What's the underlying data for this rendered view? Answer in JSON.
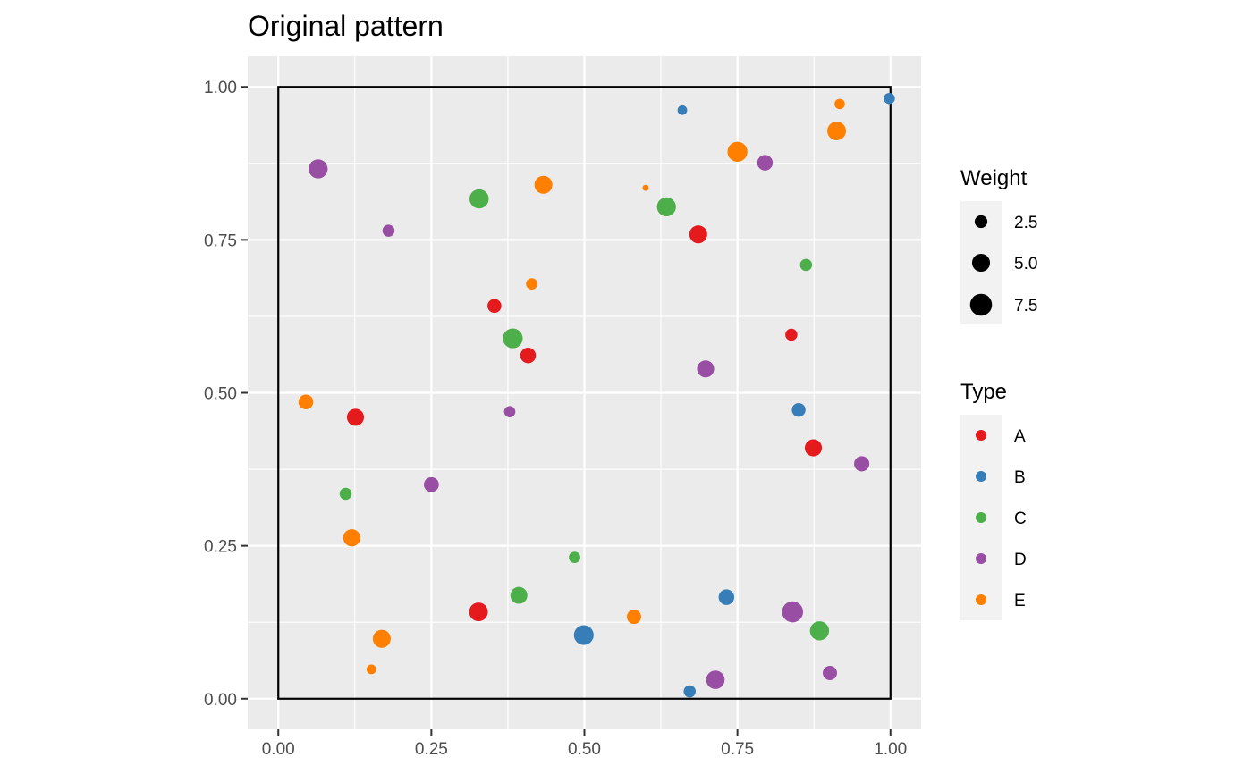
{
  "chart_data": {
    "type": "scatter",
    "title": "Original pattern",
    "xlim": [
      -0.05,
      1.05
    ],
    "ylim": [
      -0.05,
      1.05
    ],
    "x_ticks": [
      0.0,
      0.25,
      0.5,
      0.75,
      1.0
    ],
    "x_tick_labels": [
      "0.00",
      "0.25",
      "0.50",
      "0.75",
      "1.00"
    ],
    "y_ticks": [
      0.0,
      0.25,
      0.5,
      0.75,
      1.0
    ],
    "y_tick_labels": [
      "0.00",
      "0.25",
      "0.50",
      "0.75",
      "1.00"
    ],
    "window": {
      "x": [
        0,
        1
      ],
      "y": [
        0,
        1
      ]
    },
    "grid": true,
    "colors": {
      "A": "#e41a1c",
      "B": "#377eb8",
      "C": "#4daf4a",
      "D": "#984ea3",
      "E": "#ff7f00"
    },
    "size_legend": {
      "title": "Weight",
      "breaks": [
        2.5,
        5.0,
        7.5
      ],
      "labels": [
        "2.5",
        "5.0",
        "7.5"
      ]
    },
    "color_legend": {
      "title": "Type",
      "entries": [
        "A",
        "B",
        "C",
        "D",
        "E"
      ]
    },
    "points": [
      {
        "x": 0.065,
        "y": 0.866,
        "type": "D",
        "weight": 7.5
      },
      {
        "x": 0.18,
        "y": 0.765,
        "type": "D",
        "weight": 3.0
      },
      {
        "x": 0.328,
        "y": 0.817,
        "type": "C",
        "weight": 7.6
      },
      {
        "x": 0.433,
        "y": 0.84,
        "type": "E",
        "weight": 6.6
      },
      {
        "x": 0.6,
        "y": 0.835,
        "type": "E",
        "weight": 0.8
      },
      {
        "x": 0.634,
        "y": 0.804,
        "type": "C",
        "weight": 7.4
      },
      {
        "x": 0.66,
        "y": 0.962,
        "type": "B",
        "weight": 1.9
      },
      {
        "x": 0.686,
        "y": 0.759,
        "type": "A",
        "weight": 6.6
      },
      {
        "x": 0.75,
        "y": 0.894,
        "type": "E",
        "weight": 8.2
      },
      {
        "x": 0.795,
        "y": 0.876,
        "type": "D",
        "weight": 5.0
      },
      {
        "x": 0.912,
        "y": 0.928,
        "type": "E",
        "weight": 7.2
      },
      {
        "x": 0.917,
        "y": 0.972,
        "type": "E",
        "weight": 2.2
      },
      {
        "x": 0.998,
        "y": 0.981,
        "type": "B",
        "weight": 2.6
      },
      {
        "x": 0.414,
        "y": 0.678,
        "type": "E",
        "weight": 2.7
      },
      {
        "x": 0.353,
        "y": 0.642,
        "type": "A",
        "weight": 4.0
      },
      {
        "x": 0.862,
        "y": 0.709,
        "type": "C",
        "weight": 3.0
      },
      {
        "x": 0.383,
        "y": 0.589,
        "type": "C",
        "weight": 8.1
      },
      {
        "x": 0.408,
        "y": 0.561,
        "type": "A",
        "weight": 5.0
      },
      {
        "x": 0.838,
        "y": 0.595,
        "type": "A",
        "weight": 3.0
      },
      {
        "x": 0.698,
        "y": 0.539,
        "type": "D",
        "weight": 6.0
      },
      {
        "x": 0.045,
        "y": 0.485,
        "type": "E",
        "weight": 4.5
      },
      {
        "x": 0.126,
        "y": 0.46,
        "type": "A",
        "weight": 6.0
      },
      {
        "x": 0.378,
        "y": 0.469,
        "type": "D",
        "weight": 2.6
      },
      {
        "x": 0.85,
        "y": 0.472,
        "type": "B",
        "weight": 3.9
      },
      {
        "x": 0.874,
        "y": 0.41,
        "type": "A",
        "weight": 6.0
      },
      {
        "x": 0.953,
        "y": 0.384,
        "type": "D",
        "weight": 4.8
      },
      {
        "x": 0.11,
        "y": 0.335,
        "type": "C",
        "weight": 3.0
      },
      {
        "x": 0.25,
        "y": 0.35,
        "type": "D",
        "weight": 4.6
      },
      {
        "x": 0.12,
        "y": 0.263,
        "type": "E",
        "weight": 6.1
      },
      {
        "x": 0.484,
        "y": 0.231,
        "type": "C",
        "weight": 2.7
      },
      {
        "x": 0.327,
        "y": 0.142,
        "type": "A",
        "weight": 7.2
      },
      {
        "x": 0.393,
        "y": 0.169,
        "type": "C",
        "weight": 5.9
      },
      {
        "x": 0.499,
        "y": 0.104,
        "type": "B",
        "weight": 8.0
      },
      {
        "x": 0.581,
        "y": 0.134,
        "type": "E",
        "weight": 4.2
      },
      {
        "x": 0.732,
        "y": 0.166,
        "type": "B",
        "weight": 5.0
      },
      {
        "x": 0.84,
        "y": 0.142,
        "type": "D",
        "weight": 9.1
      },
      {
        "x": 0.884,
        "y": 0.111,
        "type": "C",
        "weight": 7.5
      },
      {
        "x": 0.169,
        "y": 0.098,
        "type": "E",
        "weight": 6.6
      },
      {
        "x": 0.152,
        "y": 0.048,
        "type": "E",
        "weight": 1.9
      },
      {
        "x": 0.672,
        "y": 0.012,
        "type": "B",
        "weight": 3.0
      },
      {
        "x": 0.714,
        "y": 0.031,
        "type": "D",
        "weight": 7.0
      },
      {
        "x": 0.901,
        "y": 0.042,
        "type": "D",
        "weight": 4.2
      }
    ]
  }
}
